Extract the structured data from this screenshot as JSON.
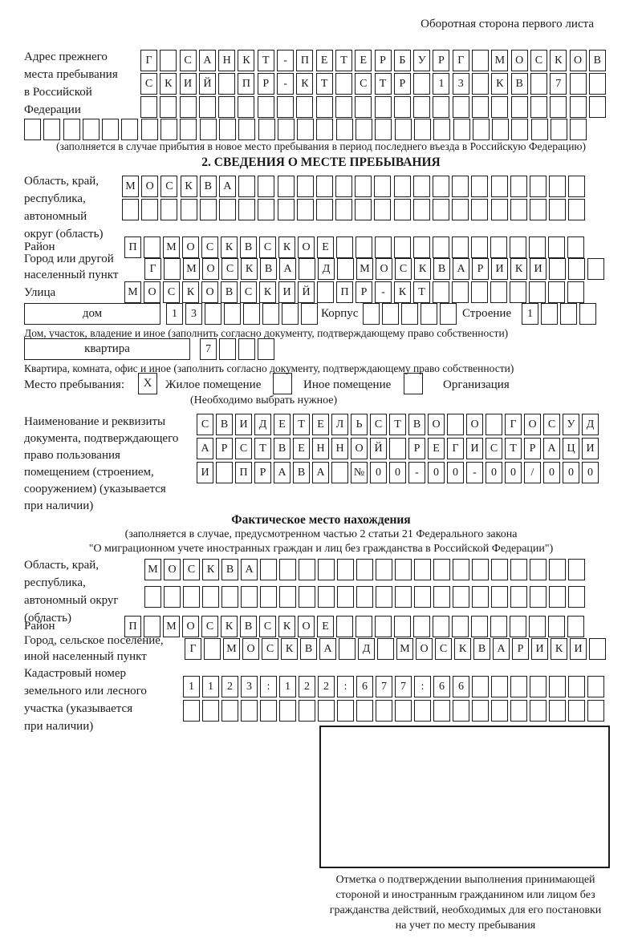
{
  "header": {
    "note": "Оборотная сторона первого листа"
  },
  "prev_address": {
    "label": "Адрес прежнего\nместа пребывания\nв Российской\nФедерации",
    "row1": {
      "len": 24,
      "text": "Г САНКТ-ПЕТЕРБУРГ МОСКОВ"
    },
    "row2": {
      "len": 24,
      "text": "СКИЙ ПР-КТ СТР 13 КВ 7"
    },
    "row3": {
      "len": 24,
      "text": ""
    },
    "row4": {
      "len": 29,
      "text": ""
    },
    "footnote": "(заполняется в случае прибытия в новое место пребывания в период последнего въезда в Российскую Федерацию)"
  },
  "section2": {
    "title": "2. СВЕДЕНИЯ О МЕСТЕ ПРЕБЫВАНИЯ",
    "region": {
      "label": "Область, край,\nреспублика,\nавтономный\nокруг (область)",
      "row1": {
        "len": 24,
        "text": "МОСКВА"
      },
      "row2": {
        "len": 24,
        "text": ""
      }
    },
    "district": {
      "label": "Район",
      "row": {
        "len": 24,
        "text": "П МОСКВСКОЕ"
      }
    },
    "city": {
      "label": "Город или другой\nнаселенный пункт",
      "row": {
        "len": 24,
        "text": "Г МОСКВА Д МОСКВАРИКИ"
      }
    },
    "street": {
      "label": "Улица",
      "row": {
        "len": 24,
        "text": "МОСКОВСКИЙ ПР-КТ"
      }
    },
    "house": {
      "box_label": "дом",
      "row": {
        "len": 8,
        "text": "13"
      },
      "korpus_label": "Корпус",
      "korpus_row": {
        "len": 5,
        "text": ""
      },
      "stroenie_label": "Строение",
      "stroenie_row": {
        "len": 4,
        "text": "1"
      },
      "footnote": "Дом, участок, владение и иное (заполнить согласно документу, подтверждающему право собственности)"
    },
    "apartment": {
      "box_label": "квартира",
      "row": {
        "len": 4,
        "text": "7"
      },
      "footnote": "Квартира, комната, офис и иное (заполнить согласно документу, подтверждающему право собственности)"
    },
    "stay_type": {
      "label": "Место пребывания:",
      "options": [
        {
          "label": "Жилое помещение",
          "mark": "X"
        },
        {
          "label": "Иное помещение",
          "mark": ""
        },
        {
          "label": "Организация",
          "mark": ""
        }
      ],
      "hint": "(Необходимо выбрать нужное)"
    },
    "document": {
      "label": "Наименование и реквизиты\nдокумента, подтверждающего\nправо пользования\nпомещением (строением,\nсооружением) (указывается\nпри наличии)",
      "row1": {
        "len": 21,
        "text": "СВИДЕТЕЛЬСТВО О ГОСУД"
      },
      "row2": {
        "len": 21,
        "text": "АРСТВЕННОЙ РЕГИСТРАЦИ"
      },
      "row3": {
        "len": 21,
        "text": "И ПРАВА №00-00-00/000"
      }
    }
  },
  "actual_location": {
    "title": "Фактическое место нахождения",
    "note1": "(заполняется в случае, предусмотренном частью 2 статьи 21 Федерального закона",
    "note2": "\"О миграционном учете иностранных граждан и лиц без гражданства в Российской Федерации\")",
    "region": {
      "label": "Область, край,\nреспублика,\nавтономный округ\n(область)",
      "row1": {
        "len": 23,
        "text": "МОСКВА"
      },
      "row2": {
        "len": 23,
        "text": ""
      }
    },
    "district": {
      "label": "Район",
      "row": {
        "len": 24,
        "text": "П МОСКВСКОЕ"
      }
    },
    "city": {
      "label": "Город, сельское поселение,\nиной населенный пункт",
      "row": {
        "len": 22,
        "text": "Г МОСКВА Д МОСКВАРИКИ"
      }
    },
    "cadastral": {
      "label": "Кадастровый номер\nземельного или лесного\nучастка (указывается\nпри наличии)",
      "row1": {
        "len": 22,
        "text": "1123:122:677:66"
      },
      "row2": {
        "len": 22,
        "text": ""
      }
    },
    "stamp_caption": "Отметка о подтверждении выполнения принимающей\nстороной и иностранным гражданином или лицом без\nгражданства действий, необходимых для его постановки\nна учет по месту пребывания"
  }
}
